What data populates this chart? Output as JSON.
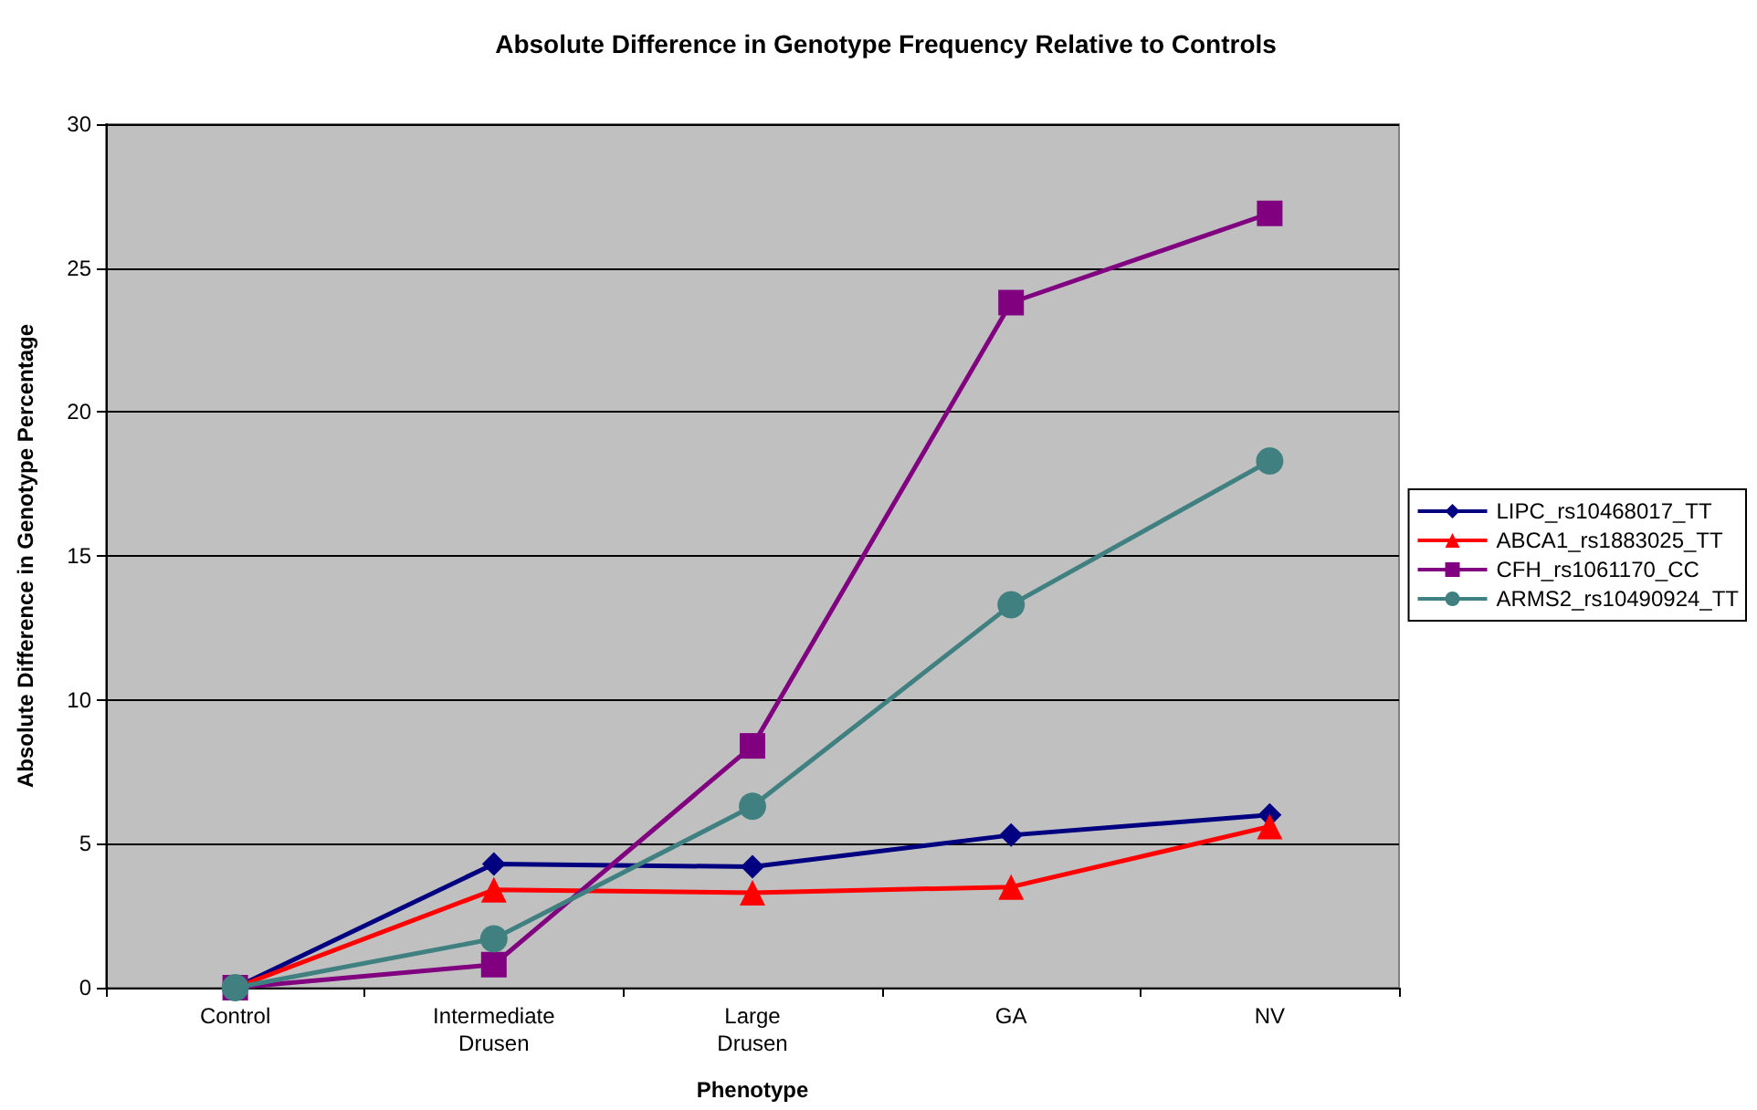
{
  "chart_data": {
    "type": "line",
    "title": "Absolute Difference in Genotype Frequency Relative to Controls",
    "xlabel": "Phenotype",
    "ylabel": "Absolute Difference in Genotype Percentage",
    "categories": [
      "Control",
      "Intermediate\nDrusen",
      "Large\nDrusen",
      "GA",
      "NV"
    ],
    "series": [
      {
        "name": "LIPC_rs10468017_TT",
        "color": "#000080",
        "marker": "diamond",
        "values": [
          0,
          4.3,
          4.2,
          5.3,
          6.0
        ]
      },
      {
        "name": "ABCA1_rs1883025_TT",
        "color": "#ff0000",
        "marker": "triangle",
        "values": [
          0,
          3.4,
          3.3,
          3.5,
          5.6
        ]
      },
      {
        "name": "CFH_rs1061170_CC",
        "color": "#800080",
        "marker": "square",
        "values": [
          0,
          0.8,
          8.4,
          23.8,
          26.9
        ]
      },
      {
        "name": "ARMS2_rs10490924_TT",
        "color": "#408080",
        "marker": "circle",
        "values": [
          0,
          1.7,
          6.3,
          13.3,
          18.3
        ]
      }
    ],
    "ylim": [
      0,
      30
    ],
    "yticks": [
      0,
      5,
      10,
      15,
      20,
      25,
      30
    ],
    "grid": "y",
    "legend": "right"
  }
}
